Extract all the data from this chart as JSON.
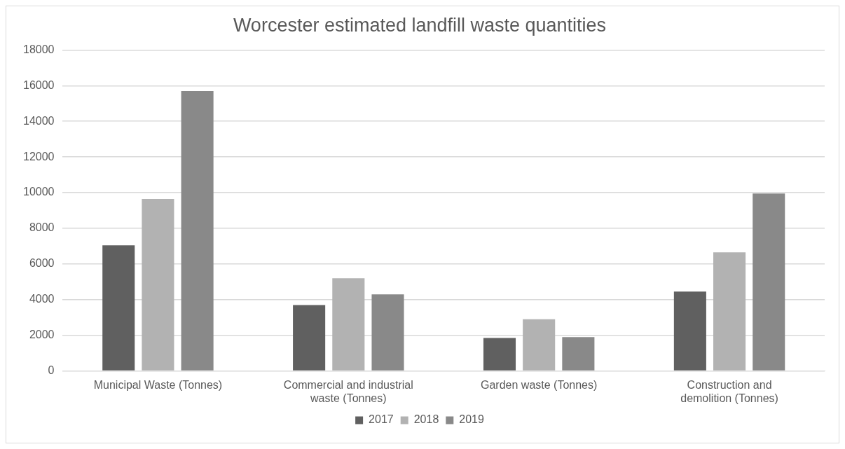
{
  "chart_data": {
    "type": "bar",
    "title": "Worcester estimated landfill waste quantities",
    "categories": [
      "Municipal Waste (Tonnes)",
      "Commercial and industrial waste (Tonnes)",
      "Garden waste (Tonnes)",
      "Construction and demolition (Tonnes)"
    ],
    "series": [
      {
        "name": "2017",
        "color": "#606060",
        "values": [
          7050,
          3700,
          1850,
          4450
        ]
      },
      {
        "name": "2018",
        "color": "#b2b2b2",
        "values": [
          9650,
          5200,
          2900,
          6650
        ]
      },
      {
        "name": "2019",
        "color": "#898989",
        "values": [
          15700,
          4300,
          1900,
          9950
        ]
      }
    ],
    "ylim": [
      0,
      18000
    ],
    "yticks": [
      0,
      2000,
      4000,
      6000,
      8000,
      10000,
      12000,
      14000,
      16000,
      18000
    ],
    "grid": "y",
    "legend": "bottom"
  }
}
